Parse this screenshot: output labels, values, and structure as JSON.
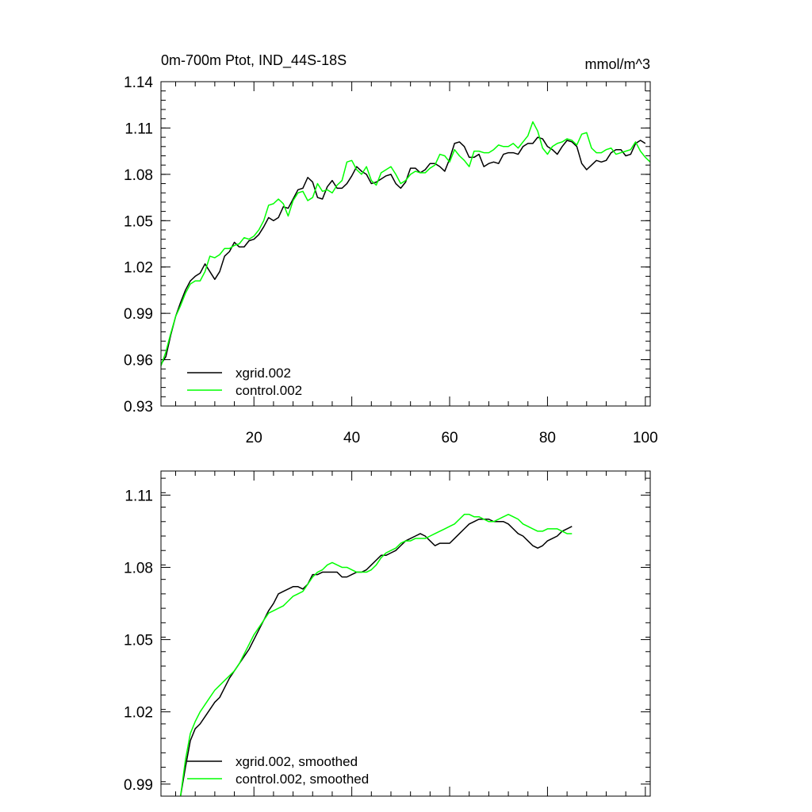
{
  "chart_data": [
    {
      "type": "line",
      "title": "0m-700m Ptot, IND_44S-18S",
      "units": "mmol/m^3",
      "xlim": [
        1,
        101
      ],
      "ylim": [
        0.93,
        1.14
      ],
      "xticks": [
        20,
        40,
        60,
        80,
        100
      ],
      "xtick_labels": [
        "20",
        "40",
        "60",
        "80",
        "100"
      ],
      "yticks": [
        0.93,
        0.96,
        0.99,
        1.02,
        1.05,
        1.08,
        1.11,
        1.14
      ],
      "ytick_labels": [
        "0.93",
        "0.96",
        "0.99",
        "1.02",
        "1.05",
        "1.08",
        "1.11",
        "1.14"
      ],
      "legend_position": "bottom-left",
      "series": [
        {
          "name": "xgrid.002",
          "color": "#000000",
          "x_start": 1,
          "values": [
            0.957,
            0.962,
            0.976,
            0.988,
            0.997,
            1.005,
            1.011,
            1.014,
            1.016,
            1.022,
            1.017,
            1.012,
            1.017,
            1.027,
            1.03,
            1.036,
            1.033,
            1.033,
            1.037,
            1.038,
            1.041,
            1.046,
            1.052,
            1.05,
            1.052,
            1.059,
            1.058,
            1.064,
            1.07,
            1.071,
            1.078,
            1.075,
            1.065,
            1.064,
            1.072,
            1.076,
            1.071,
            1.071,
            1.074,
            1.079,
            1.085,
            1.082,
            1.08,
            1.074,
            1.075,
            1.077,
            1.079,
            1.08,
            1.074,
            1.071,
            1.075,
            1.084,
            1.084,
            1.081,
            1.083,
            1.087,
            1.087,
            1.085,
            1.082,
            1.09,
            1.1,
            1.101,
            1.098,
            1.091,
            1.091,
            1.093,
            1.085,
            1.087,
            1.088,
            1.087,
            1.093,
            1.094,
            1.094,
            1.093,
            1.098,
            1.1,
            1.1,
            1.104,
            1.103,
            1.098,
            1.096,
            1.093,
            1.098,
            1.102,
            1.101,
            1.098,
            1.087,
            1.083,
            1.086,
            1.089,
            1.088,
            1.089,
            1.094,
            1.096,
            1.096,
            1.092,
            1.093,
            1.1,
            1.102,
            1.1
          ]
        },
        {
          "name": "control.002",
          "color": "#00ff00",
          "x_start": 1,
          "values": [
            0.956,
            0.965,
            0.977,
            0.988,
            0.995,
            1.003,
            1.009,
            1.011,
            1.011,
            1.017,
            1.027,
            1.026,
            1.028,
            1.032,
            1.032,
            1.034,
            1.035,
            1.039,
            1.038,
            1.04,
            1.044,
            1.05,
            1.06,
            1.061,
            1.064,
            1.061,
            1.053,
            1.063,
            1.068,
            1.069,
            1.063,
            1.065,
            1.074,
            1.069,
            1.07,
            1.068,
            1.073,
            1.076,
            1.088,
            1.089,
            1.083,
            1.08,
            1.085,
            1.076,
            1.073,
            1.081,
            1.083,
            1.085,
            1.08,
            1.074,
            1.076,
            1.08,
            1.082,
            1.081,
            1.081,
            1.084,
            1.086,
            1.093,
            1.092,
            1.088,
            1.096,
            1.092,
            1.089,
            1.085,
            1.095,
            1.095,
            1.094,
            1.094,
            1.096,
            1.099,
            1.098,
            1.098,
            1.1,
            1.097,
            1.101,
            1.105,
            1.114,
            1.108,
            1.097,
            1.093,
            1.098,
            1.1,
            1.101,
            1.103,
            1.102,
            1.099,
            1.106,
            1.107,
            1.097,
            1.094,
            1.094,
            1.096,
            1.097,
            1.093,
            1.094,
            1.095,
            1.096,
            1.101,
            1.095,
            1.091,
            1.088
          ]
        }
      ]
    },
    {
      "type": "line",
      "xlim": [
        1,
        101
      ],
      "ylim": [
        0.985,
        1.12
      ],
      "xticks": [
        20,
        40,
        60,
        80,
        100
      ],
      "yticks": [
        0.99,
        1.02,
        1.05,
        1.08,
        1.11
      ],
      "ytick_labels": [
        "0.99",
        "1.02",
        "1.05",
        "1.08",
        "1.11"
      ],
      "legend_position": "bottom-left",
      "series": [
        {
          "name": "xgrid.002, smoothed",
          "color": "#000000",
          "x_start": 5,
          "values": [
            0.985,
            0.997,
            1.008,
            1.013,
            1.015,
            1.018,
            1.021,
            1.024,
            1.026,
            1.03,
            1.034,
            1.037,
            1.04,
            1.043,
            1.046,
            1.05,
            1.054,
            1.058,
            1.062,
            1.065,
            1.069,
            1.07,
            1.071,
            1.072,
            1.072,
            1.071,
            1.073,
            1.077,
            1.077,
            1.078,
            1.078,
            1.078,
            1.078,
            1.076,
            1.076,
            1.077,
            1.078,
            1.078,
            1.079,
            1.081,
            1.083,
            1.085,
            1.085,
            1.086,
            1.087,
            1.089,
            1.091,
            1.092,
            1.093,
            1.094,
            1.093,
            1.091,
            1.089,
            1.09,
            1.09,
            1.09,
            1.092,
            1.094,
            1.096,
            1.098,
            1.099,
            1.1,
            1.1,
            1.1,
            1.099,
            1.099,
            1.099,
            1.098,
            1.096,
            1.094,
            1.093,
            1.091,
            1.089,
            1.088,
            1.089,
            1.091,
            1.092,
            1.093,
            1.095,
            1.096,
            1.097
          ]
        },
        {
          "name": "control.002, smoothed",
          "color": "#00ff00",
          "x_start": 5,
          "values": [
            0.985,
            1.0,
            1.011,
            1.016,
            1.02,
            1.023,
            1.026,
            1.029,
            1.031,
            1.033,
            1.035,
            1.037,
            1.04,
            1.044,
            1.048,
            1.052,
            1.055,
            1.058,
            1.061,
            1.062,
            1.063,
            1.064,
            1.066,
            1.068,
            1.069,
            1.07,
            1.073,
            1.076,
            1.078,
            1.079,
            1.081,
            1.082,
            1.081,
            1.08,
            1.08,
            1.079,
            1.078,
            1.078,
            1.078,
            1.079,
            1.081,
            1.084,
            1.086,
            1.087,
            1.088,
            1.09,
            1.091,
            1.091,
            1.092,
            1.092,
            1.092,
            1.093,
            1.094,
            1.095,
            1.096,
            1.097,
            1.098,
            1.1,
            1.102,
            1.102,
            1.101,
            1.101,
            1.1,
            1.099,
            1.099,
            1.1,
            1.101,
            1.102,
            1.101,
            1.1,
            1.098,
            1.097,
            1.096,
            1.095,
            1.095,
            1.096,
            1.096,
            1.096,
            1.095,
            1.094,
            1.094
          ]
        }
      ]
    }
  ]
}
